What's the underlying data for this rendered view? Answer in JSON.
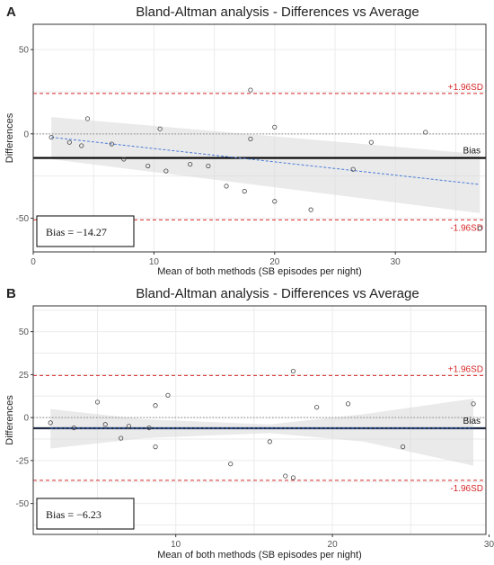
{
  "chart_data": [
    {
      "panel": "A",
      "type": "scatter",
      "title": "Bland-Altman analysis - Differences vs Average",
      "xlabel": "Mean of both methods (SB episodes per night)",
      "ylabel": "Differences",
      "xlim": [
        0,
        37.5
      ],
      "ylim": [
        -70,
        65
      ],
      "xticks": [
        0,
        10,
        20,
        30
      ],
      "yticks": [
        -50,
        0,
        50
      ],
      "grid": true,
      "bias": -14.27,
      "upper_loa": 24,
      "lower_loa": -51,
      "upper_label": "+1.96SD",
      "lower_label": "-1.96SD",
      "bias_label": "Bias",
      "bias_box": "Bias = −14.27",
      "trend": {
        "start": [
          1.5,
          -2
        ],
        "end": [
          37,
          -30
        ]
      },
      "band": {
        "x": [
          1.5,
          37
        ],
        "upper": [
          10,
          -12
        ],
        "lower": [
          -15,
          -47
        ]
      },
      "points": [
        [
          1.5,
          -2
        ],
        [
          3,
          -5
        ],
        [
          4,
          -7
        ],
        [
          4.5,
          9
        ],
        [
          6.5,
          -6
        ],
        [
          7.5,
          -15
        ],
        [
          9.5,
          -19
        ],
        [
          10.5,
          3
        ],
        [
          11,
          -22
        ],
        [
          13,
          -18
        ],
        [
          14.5,
          -19
        ],
        [
          16,
          -31
        ],
        [
          17.5,
          -34
        ],
        [
          18,
          26
        ],
        [
          18,
          -3
        ],
        [
          20,
          4
        ],
        [
          20,
          -40
        ],
        [
          23,
          -45
        ],
        [
          26.5,
          -21
        ],
        [
          28,
          -5
        ],
        [
          32.5,
          1
        ],
        [
          37,
          -56
        ]
      ]
    },
    {
      "panel": "B",
      "type": "scatter",
      "title": "Bland-Altman analysis - Differences vs Average",
      "xlabel": "Mean of both methods (SB episodes per night)",
      "ylabel": "Differences",
      "xlim": [
        0.9,
        29.8
      ],
      "ylim": [
        -68,
        65
      ],
      "xticks": [
        10,
        20,
        30
      ],
      "yticks": [
        -50,
        -25,
        0,
        25,
        50
      ],
      "grid": true,
      "bias": -6.23,
      "upper_loa": 24.5,
      "lower_loa": -36.5,
      "upper_label": "+1.96SD",
      "lower_label": "-1.96SD",
      "bias_label": "Bias",
      "bias_box": "Bias = −6.23",
      "trend": {
        "start": [
          2,
          -6.23
        ],
        "end": [
          29,
          -6.23
        ]
      },
      "band": {
        "x": [
          2,
          8,
          16,
          22,
          29
        ],
        "upper": [
          5,
          -1,
          -4,
          2,
          11
        ],
        "lower": [
          -18,
          -12,
          -9,
          -14,
          -28
        ]
      },
      "points": [
        [
          2,
          -3
        ],
        [
          3.5,
          -6
        ],
        [
          5,
          9
        ],
        [
          5.5,
          -4
        ],
        [
          6.5,
          -12
        ],
        [
          7,
          -5
        ],
        [
          8.3,
          -6
        ],
        [
          8.7,
          -17
        ],
        [
          8.7,
          7
        ],
        [
          9.5,
          13
        ],
        [
          13.5,
          -27
        ],
        [
          16,
          -14
        ],
        [
          17,
          -34
        ],
        [
          17.5,
          27
        ],
        [
          17.5,
          -35
        ],
        [
          19,
          6
        ],
        [
          21,
          8
        ],
        [
          24.5,
          -17
        ],
        [
          29,
          8
        ]
      ]
    }
  ]
}
